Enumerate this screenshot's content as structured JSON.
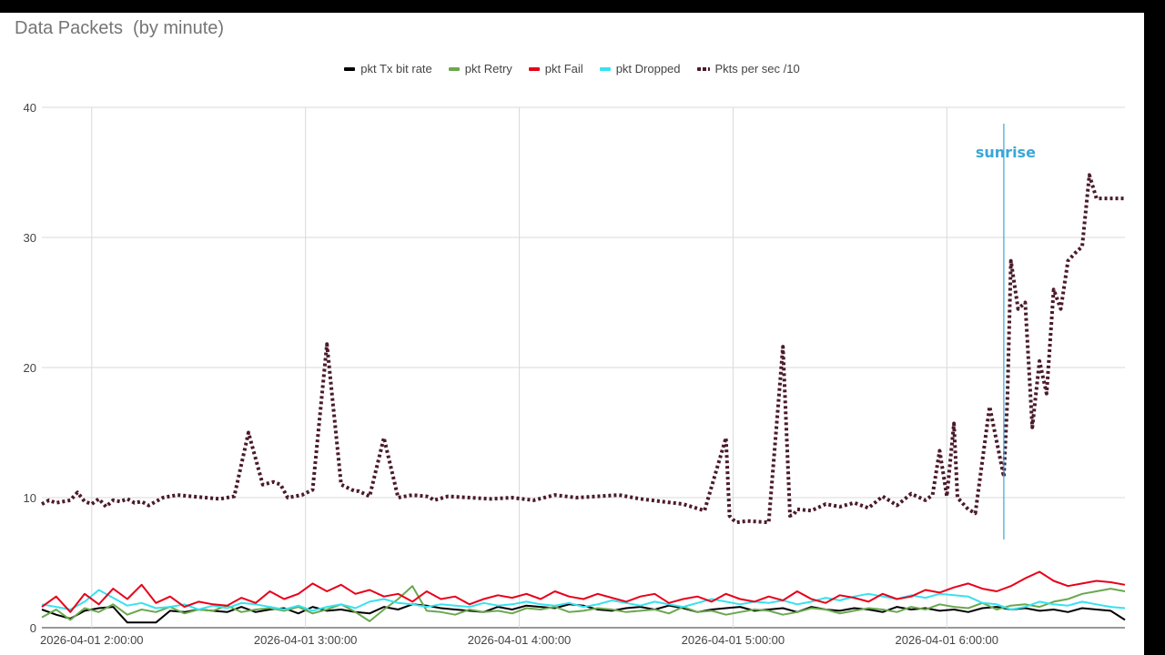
{
  "chart_data": {
    "type": "line",
    "title": "Data Packets  (by minute)",
    "xlabel": "",
    "ylabel": "",
    "ylim": [
      0,
      40
    ],
    "yticks": [
      0,
      10,
      20,
      30,
      40
    ],
    "xlim": [
      "2026-04-01 01:46:00",
      "2026-04-01 06:50:00"
    ],
    "xticks": [
      "2026-04-01 2:00:00",
      "2026-04-01 3:00:00",
      "2026-04-01 4:00:00",
      "2026-04-01 5:00:00",
      "2026-04-01 6:00:00"
    ],
    "grid": true,
    "legend_position": "top",
    "series": [
      {
        "name": "pkt Tx bit rate",
        "color": "#000000",
        "style": "solid",
        "x": [
          "01:46",
          "01:50",
          "01:54",
          "01:58",
          "02:02",
          "02:06",
          "02:10",
          "02:14",
          "02:18",
          "02:22",
          "02:26",
          "02:30",
          "02:34",
          "02:38",
          "02:42",
          "02:46",
          "02:50",
          "02:54",
          "02:58",
          "03:02",
          "03:06",
          "03:10",
          "03:14",
          "03:18",
          "03:22",
          "03:26",
          "03:30",
          "03:34",
          "03:38",
          "03:42",
          "03:46",
          "03:50",
          "03:54",
          "03:58",
          "04:02",
          "04:06",
          "04:10",
          "04:14",
          "04:18",
          "04:22",
          "04:26",
          "04:30",
          "04:34",
          "04:38",
          "04:42",
          "04:46",
          "04:50",
          "04:54",
          "04:58",
          "05:02",
          "05:06",
          "05:10",
          "05:14",
          "05:18",
          "05:22",
          "05:26",
          "05:30",
          "05:34",
          "05:38",
          "05:42",
          "05:46",
          "05:50",
          "05:54",
          "05:58",
          "06:02",
          "06:06",
          "06:10",
          "06:14",
          "06:18",
          "06:22",
          "06:26",
          "06:30",
          "06:34",
          "06:38",
          "06:42",
          "06:46",
          "06:50"
        ],
        "y": [
          1.4,
          1.0,
          0.7,
          1.3,
          1.5,
          1.6,
          0.4,
          0.4,
          0.4,
          1.3,
          1.2,
          1.4,
          1.3,
          1.2,
          1.6,
          1.2,
          1.4,
          1.5,
          1.1,
          1.6,
          1.3,
          1.4,
          1.2,
          1.1,
          1.6,
          1.4,
          1.8,
          1.7,
          1.5,
          1.4,
          1.3,
          1.2,
          1.6,
          1.4,
          1.7,
          1.6,
          1.5,
          1.8,
          1.7,
          1.4,
          1.3,
          1.5,
          1.6,
          1.4,
          1.7,
          1.5,
          1.2,
          1.4,
          1.5,
          1.6,
          1.3,
          1.4,
          1.5,
          1.2,
          1.6,
          1.4,
          1.3,
          1.5,
          1.4,
          1.2,
          1.6,
          1.4,
          1.5,
          1.3,
          1.4,
          1.2,
          1.5,
          1.6,
          1.4,
          1.5,
          1.3,
          1.4,
          1.2,
          1.5,
          1.4,
          1.3,
          0.6
        ]
      },
      {
        "name": "pkt Retry",
        "color": "#6aa84f",
        "style": "solid",
        "x": [
          "01:46",
          "01:50",
          "01:54",
          "01:58",
          "02:02",
          "02:06",
          "02:10",
          "02:14",
          "02:18",
          "02:22",
          "02:26",
          "02:30",
          "02:34",
          "02:38",
          "02:42",
          "02:46",
          "02:50",
          "02:54",
          "02:58",
          "03:02",
          "03:06",
          "03:10",
          "03:14",
          "03:18",
          "03:22",
          "03:26",
          "03:30",
          "03:34",
          "03:38",
          "03:42",
          "03:46",
          "03:50",
          "03:54",
          "03:58",
          "04:02",
          "04:06",
          "04:10",
          "04:14",
          "04:18",
          "04:22",
          "04:26",
          "04:30",
          "04:34",
          "04:38",
          "04:42",
          "04:46",
          "04:50",
          "04:54",
          "04:58",
          "05:02",
          "05:06",
          "05:10",
          "05:14",
          "05:18",
          "05:22",
          "05:26",
          "05:30",
          "05:34",
          "05:38",
          "05:42",
          "05:46",
          "05:50",
          "05:54",
          "05:58",
          "06:02",
          "06:06",
          "06:10",
          "06:14",
          "06:18",
          "06:22",
          "06:26",
          "06:30",
          "06:34",
          "06:38",
          "06:42",
          "06:46",
          "06:50"
        ],
        "y": [
          0.8,
          1.4,
          0.6,
          1.5,
          1.2,
          1.8,
          1.0,
          1.4,
          1.2,
          1.6,
          1.1,
          1.4,
          1.3,
          1.7,
          1.2,
          1.4,
          1.5,
          1.3,
          1.6,
          1.1,
          1.4,
          1.8,
          1.2,
          0.5,
          1.4,
          2.2,
          3.2,
          1.3,
          1.2,
          1.0,
          1.4,
          1.2,
          1.3,
          1.1,
          1.5,
          1.4,
          1.6,
          1.2,
          1.3,
          1.5,
          1.4,
          1.2,
          1.3,
          1.4,
          1.1,
          1.6,
          1.2,
          1.3,
          1.0,
          1.2,
          1.4,
          1.3,
          1.0,
          1.2,
          1.5,
          1.4,
          1.1,
          1.3,
          1.5,
          1.4,
          1.2,
          1.6,
          1.4,
          1.8,
          1.6,
          1.5,
          1.9,
          1.4,
          1.7,
          1.8,
          1.6,
          2.0,
          2.2,
          2.6,
          2.8,
          3.0,
          2.8
        ]
      },
      {
        "name": "pkt Fail",
        "color": "#e8001a",
        "style": "solid",
        "x": [
          "01:46",
          "01:50",
          "01:54",
          "01:58",
          "02:02",
          "02:06",
          "02:10",
          "02:14",
          "02:18",
          "02:22",
          "02:26",
          "02:30",
          "02:34",
          "02:38",
          "02:42",
          "02:46",
          "02:50",
          "02:54",
          "02:58",
          "03:02",
          "03:06",
          "03:10",
          "03:14",
          "03:18",
          "03:22",
          "03:26",
          "03:30",
          "03:34",
          "03:38",
          "03:42",
          "03:46",
          "03:50",
          "03:54",
          "03:58",
          "04:02",
          "04:06",
          "04:10",
          "04:14",
          "04:18",
          "04:22",
          "04:26",
          "04:30",
          "04:34",
          "04:38",
          "04:42",
          "04:46",
          "04:50",
          "04:54",
          "04:58",
          "05:02",
          "05:06",
          "05:10",
          "05:14",
          "05:18",
          "05:22",
          "05:26",
          "05:30",
          "05:34",
          "05:38",
          "05:42",
          "05:46",
          "05:50",
          "05:54",
          "05:58",
          "06:02",
          "06:06",
          "06:10",
          "06:14",
          "06:18",
          "06:22",
          "06:26",
          "06:30",
          "06:34",
          "06:38",
          "06:42",
          "06:46",
          "06:50"
        ],
        "y": [
          1.6,
          2.4,
          1.2,
          2.6,
          1.8,
          3.0,
          2.2,
          3.3,
          1.9,
          2.4,
          1.6,
          2.0,
          1.8,
          1.7,
          2.3,
          1.9,
          2.8,
          2.2,
          2.6,
          3.4,
          2.8,
          3.3,
          2.6,
          2.9,
          2.4,
          2.6,
          2.0,
          2.8,
          2.2,
          2.4,
          1.8,
          2.2,
          2.5,
          2.3,
          2.6,
          2.2,
          2.8,
          2.4,
          2.2,
          2.6,
          2.3,
          2.0,
          2.4,
          2.6,
          1.9,
          2.2,
          2.4,
          2.0,
          2.6,
          2.2,
          2.0,
          2.4,
          2.1,
          2.8,
          2.2,
          1.9,
          2.5,
          2.3,
          2.0,
          2.6,
          2.2,
          2.4,
          2.9,
          2.7,
          3.1,
          3.4,
          3.0,
          2.8,
          3.2,
          3.8,
          4.3,
          3.6,
          3.2,
          3.4,
          3.6,
          3.5,
          3.3
        ]
      },
      {
        "name": "pkt Dropped",
        "color": "#36e2ef",
        "style": "solid",
        "x": [
          "01:46",
          "01:50",
          "01:54",
          "01:58",
          "02:02",
          "02:06",
          "02:10",
          "02:14",
          "02:18",
          "02:22",
          "02:26",
          "02:30",
          "02:34",
          "02:38",
          "02:42",
          "02:46",
          "02:50",
          "02:54",
          "02:58",
          "03:02",
          "03:06",
          "03:10",
          "03:14",
          "03:18",
          "03:22",
          "03:26",
          "03:30",
          "03:34",
          "03:38",
          "03:42",
          "03:46",
          "03:50",
          "03:54",
          "03:58",
          "04:02",
          "04:06",
          "04:10",
          "04:14",
          "04:18",
          "04:22",
          "04:26",
          "04:30",
          "04:34",
          "04:38",
          "04:42",
          "04:46",
          "04:50",
          "04:54",
          "04:58",
          "05:02",
          "05:06",
          "05:10",
          "05:14",
          "05:18",
          "05:22",
          "05:26",
          "05:30",
          "05:34",
          "05:38",
          "05:42",
          "05:46",
          "05:50",
          "05:54",
          "05:58",
          "06:02",
          "06:06",
          "06:10",
          "06:14",
          "06:18",
          "06:22",
          "06:26",
          "06:30",
          "06:34",
          "06:38",
          "06:42",
          "06:46",
          "06:50"
        ],
        "y": [
          1.8,
          1.6,
          1.4,
          2.0,
          2.9,
          2.3,
          1.7,
          1.9,
          1.5,
          1.6,
          1.8,
          1.4,
          1.7,
          1.5,
          1.9,
          1.8,
          1.6,
          1.4,
          1.7,
          1.3,
          1.6,
          1.8,
          1.5,
          2.0,
          2.2,
          1.9,
          1.8,
          1.6,
          1.8,
          1.7,
          1.6,
          1.9,
          1.7,
          1.8,
          2.0,
          1.8,
          1.7,
          1.9,
          1.6,
          1.8,
          2.1,
          1.9,
          1.7,
          2.0,
          1.8,
          1.6,
          1.9,
          2.2,
          2.0,
          1.8,
          2.0,
          1.9,
          2.1,
          1.8,
          2.0,
          2.3,
          2.1,
          2.4,
          2.6,
          2.4,
          2.2,
          2.5,
          2.3,
          2.6,
          2.5,
          2.4,
          1.9,
          1.8,
          1.4,
          1.6,
          2.0,
          1.8,
          1.7,
          2.0,
          1.8,
          1.6,
          1.5
        ]
      },
      {
        "name": "Pkts per sec /10",
        "color": "#4a1a2b",
        "style": "dotted",
        "x": [
          "01:46",
          "01:48",
          "01:50",
          "01:52",
          "01:54",
          "01:56",
          "01:58",
          "02:00",
          "02:02",
          "02:04",
          "02:06",
          "02:08",
          "02:10",
          "02:12",
          "02:14",
          "02:16",
          "02:20",
          "02:24",
          "02:28",
          "02:32",
          "02:36",
          "02:40",
          "02:44",
          "02:48",
          "02:51",
          "02:53",
          "02:55",
          "02:59",
          "03:02",
          "03:06",
          "03:10",
          "03:13",
          "03:14",
          "03:15",
          "03:18",
          "03:22",
          "03:26",
          "03:30",
          "03:34",
          "03:35",
          "03:36",
          "03:40",
          "03:46",
          "03:52",
          "03:58",
          "04:04",
          "04:10",
          "04:16",
          "04:22",
          "04:28",
          "04:34",
          "04:40",
          "04:46",
          "04:52",
          "04:58",
          "04:59",
          "05:00",
          "05:01",
          "05:04",
          "05:10",
          "05:14",
          "05:16",
          "05:17",
          "05:18",
          "05:22",
          "05:26",
          "05:30",
          "05:34",
          "05:38",
          "05:42",
          "05:46",
          "05:50",
          "05:54",
          "05:56",
          "05:58",
          "06:00",
          "06:02",
          "06:03",
          "06:05",
          "06:06",
          "06:08",
          "06:12",
          "06:16",
          "06:17",
          "06:18",
          "06:20",
          "06:22",
          "06:24",
          "06:26",
          "06:28",
          "06:30",
          "06:32",
          "06:34",
          "06:36",
          "06:38",
          "06:40",
          "06:42",
          "06:44",
          "06:46",
          "06:48",
          "06:49",
          "06:50"
        ],
        "y": [
          9.5,
          9.8,
          9.6,
          9.7,
          9.8,
          10.4,
          9.7,
          9.5,
          9.9,
          9.3,
          9.8,
          9.7,
          9.9,
          9.6,
          9.7,
          9.4,
          10.0,
          10.2,
          10.1,
          10.0,
          9.9,
          10.1,
          15.0,
          11.0,
          11.2,
          11.0,
          10.0,
          10.2,
          10.6,
          21.8,
          11.0,
          10.6,
          10.5,
          10.5,
          10.1,
          14.6,
          10.0,
          10.2,
          10.1,
          10.0,
          9.8,
          10.1,
          10.0,
          9.9,
          10.0,
          9.8,
          10.2,
          10.0,
          10.1,
          10.2,
          9.9,
          9.7,
          9.5,
          9.0,
          14.6,
          8.6,
          8.3,
          8.1,
          8.2,
          8.1,
          21.6,
          8.6,
          8.7,
          9.1,
          9.0,
          9.5,
          9.3,
          9.6,
          9.2,
          10.1,
          9.4,
          10.3,
          9.8,
          10.2,
          13.6,
          10.1,
          15.7,
          10.0,
          9.4,
          9.1,
          8.8,
          17.0,
          11.6,
          17.5,
          28.2,
          24.5,
          25.0,
          15.4,
          20.5,
          18.0,
          26.0,
          24.5,
          28.2,
          28.8,
          29.3,
          34.8,
          33.0,
          33.0,
          33.0,
          33.0,
          33.0,
          33.0
        ]
      }
    ],
    "annotations": [
      {
        "text": "sunrise",
        "x": "06:16",
        "color": "#3aa6d9"
      }
    ]
  }
}
